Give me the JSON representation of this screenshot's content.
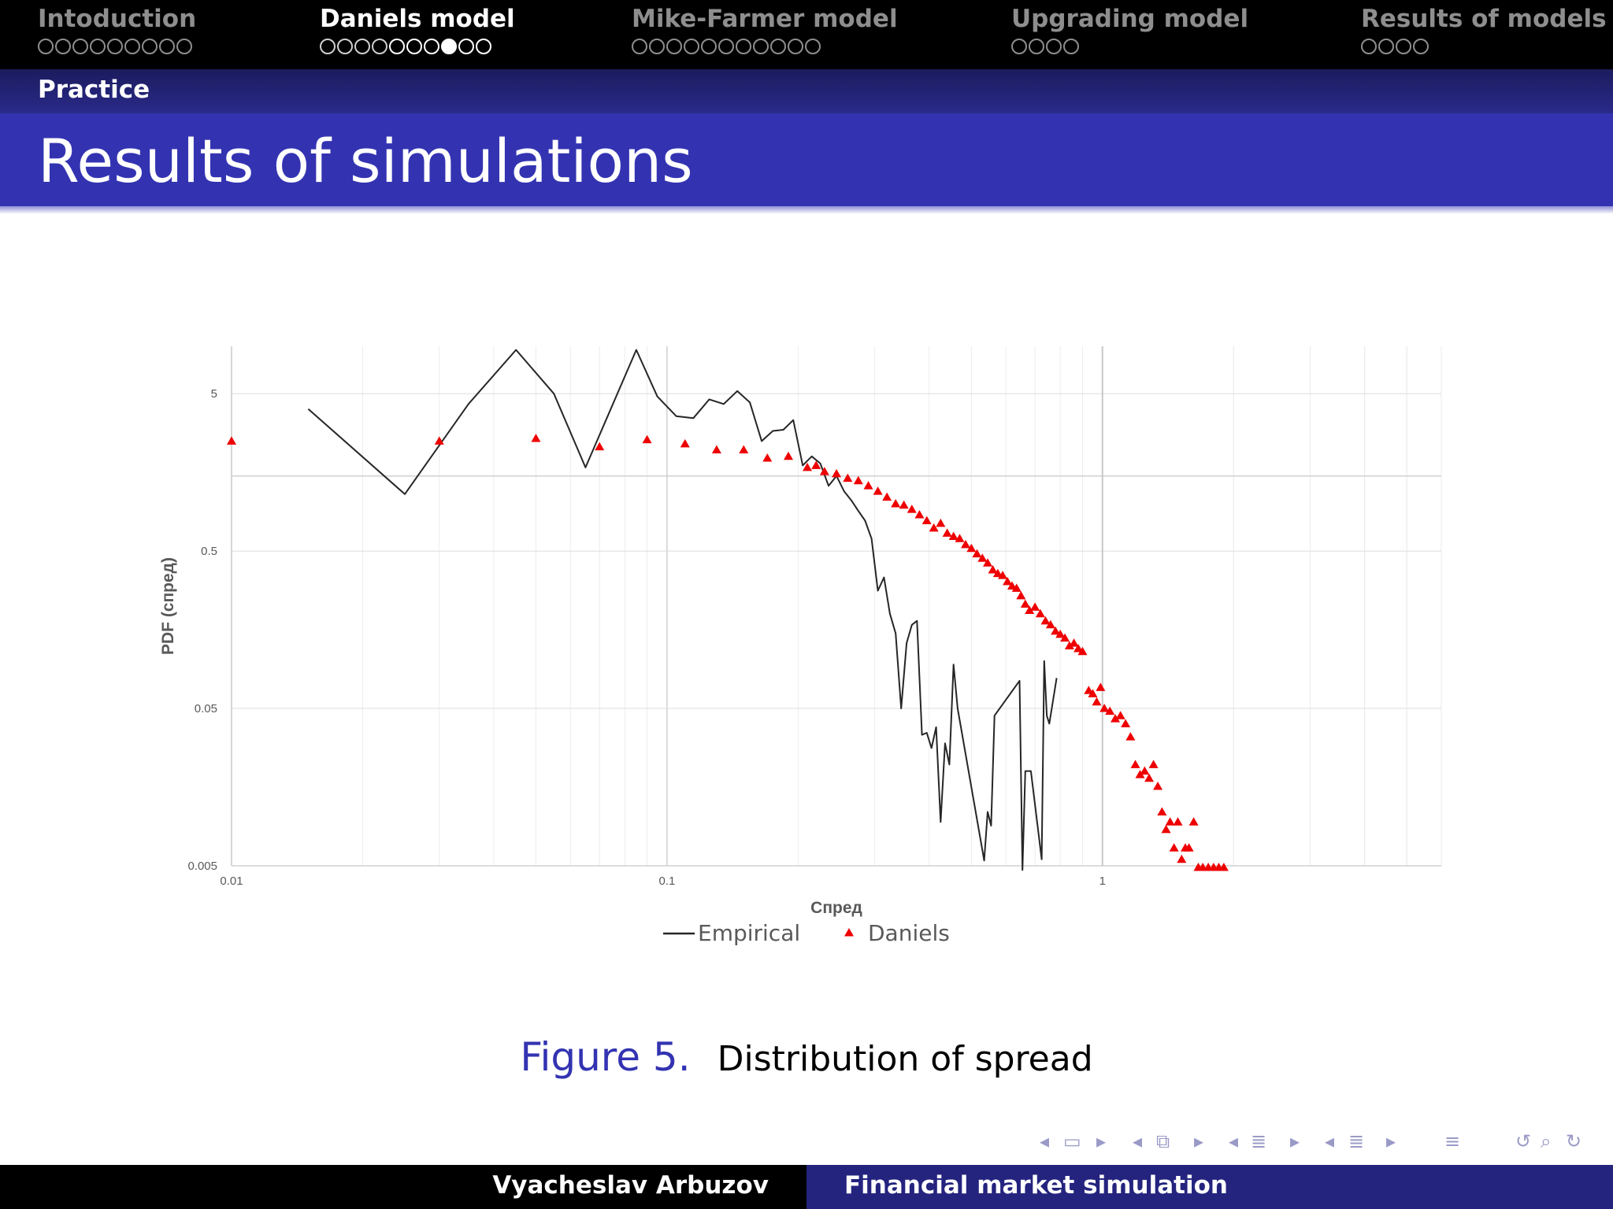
{
  "nav": {
    "sections": [
      {
        "title": "Intoduction",
        "dots": 9,
        "filled": [],
        "current": []
      },
      {
        "title": "Daniels model",
        "dots": 10,
        "filled": [
          7
        ],
        "current": [
          4,
          5,
          6,
          7,
          8,
          9
        ]
      },
      {
        "title": "Mike-Farmer model",
        "dots": 11,
        "filled": [],
        "current": []
      },
      {
        "title": "Upgrading model",
        "dots": 4,
        "filled": [],
        "current": []
      },
      {
        "title": "Results of models",
        "dots": 4,
        "filled": [],
        "current": []
      }
    ],
    "active_index": 1
  },
  "subsection": "Practice",
  "frame_title": "Results of simulations",
  "chart_data": {
    "type": "line+scatter",
    "xscale": "log",
    "yscale": "log",
    "xlim": [
      0.01,
      6
    ],
    "ylim": [
      0.005,
      10
    ],
    "xticks": [
      {
        "value": 0.01,
        "label": "0.01"
      },
      {
        "value": 0.1,
        "label": "0.1"
      },
      {
        "value": 1,
        "label": "1"
      }
    ],
    "yticks": [
      {
        "value": 0.005,
        "label": "0.005"
      },
      {
        "value": 0.05,
        "label": "0.05"
      },
      {
        "value": 0.5,
        "label": "0.5"
      },
      {
        "value": 5,
        "label": "5"
      }
    ],
    "xlabel": "Спред",
    "ylabel": "PDF (спред)",
    "legend_position": "bottom",
    "grid": true,
    "series": [
      {
        "name": "Empirical",
        "kind": "line",
        "color": "#262626",
        "points": [
          [
            0.015,
            4.0
          ],
          [
            0.025,
            1.15
          ],
          [
            0.035,
            4.3
          ],
          [
            0.045,
            9.5
          ],
          [
            0.055,
            5.0
          ],
          [
            0.065,
            1.7
          ],
          [
            0.085,
            9.5
          ],
          [
            0.095,
            4.8
          ],
          [
            0.105,
            3.6
          ],
          [
            0.115,
            3.5
          ],
          [
            0.125,
            4.6
          ],
          [
            0.135,
            4.3
          ],
          [
            0.145,
            5.2
          ],
          [
            0.155,
            4.4
          ],
          [
            0.165,
            2.5
          ],
          [
            0.175,
            2.9
          ],
          [
            0.185,
            2.95
          ],
          [
            0.195,
            3.4
          ],
          [
            0.205,
            1.75
          ],
          [
            0.215,
            2.0
          ],
          [
            0.225,
            1.8
          ],
          [
            0.235,
            1.3
          ],
          [
            0.245,
            1.5
          ],
          [
            0.255,
            1.2
          ],
          [
            0.265,
            1.05
          ],
          [
            0.275,
            0.9
          ],
          [
            0.285,
            0.78
          ],
          [
            0.295,
            0.6
          ],
          [
            0.305,
            0.28
          ],
          [
            0.315,
            0.34
          ],
          [
            0.325,
            0.2
          ],
          [
            0.335,
            0.15
          ],
          [
            0.345,
            0.05
          ],
          [
            0.355,
            0.13
          ],
          [
            0.365,
            0.17
          ],
          [
            0.375,
            0.18
          ],
          [
            0.385,
            0.034
          ],
          [
            0.395,
            0.035
          ],
          [
            0.405,
            0.028
          ],
          [
            0.415,
            0.038
          ],
          [
            0.425,
            0.0095
          ],
          [
            0.435,
            0.03
          ],
          [
            0.445,
            0.022
          ],
          [
            0.455,
            0.095
          ],
          [
            0.465,
            0.05
          ],
          [
            0.535,
            0.0054
          ],
          [
            0.545,
            0.011
          ],
          [
            0.555,
            0.009
          ],
          [
            0.565,
            0.045
          ],
          [
            0.645,
            0.075
          ],
          [
            0.655,
            0.0047
          ],
          [
            0.665,
            0.02
          ],
          [
            0.685,
            0.02
          ],
          [
            0.725,
            0.0055
          ],
          [
            0.735,
            0.1
          ],
          [
            0.745,
            0.045
          ],
          [
            0.755,
            0.04
          ],
          [
            0.785,
            0.078
          ]
        ]
      },
      {
        "name": "Daniels",
        "kind": "scatter",
        "marker": "triangle",
        "color": "#ee0000",
        "points": [
          [
            0.01,
            2.5
          ],
          [
            0.03,
            2.5
          ],
          [
            0.05,
            2.6
          ],
          [
            0.07,
            2.3
          ],
          [
            0.09,
            2.55
          ],
          [
            0.11,
            2.4
          ],
          [
            0.13,
            2.2
          ],
          [
            0.15,
            2.2
          ],
          [
            0.17,
            1.95
          ],
          [
            0.19,
            2.0
          ],
          [
            0.21,
            1.7
          ],
          [
            0.22,
            1.75
          ],
          [
            0.23,
            1.6
          ],
          [
            0.245,
            1.55
          ],
          [
            0.26,
            1.45
          ],
          [
            0.275,
            1.4
          ],
          [
            0.29,
            1.3
          ],
          [
            0.305,
            1.2
          ],
          [
            0.32,
            1.1
          ],
          [
            0.335,
            1.0
          ],
          [
            0.35,
            0.98
          ],
          [
            0.365,
            0.92
          ],
          [
            0.38,
            0.85
          ],
          [
            0.395,
            0.78
          ],
          [
            0.41,
            0.7
          ],
          [
            0.425,
            0.75
          ],
          [
            0.44,
            0.65
          ],
          [
            0.455,
            0.62
          ],
          [
            0.47,
            0.6
          ],
          [
            0.485,
            0.55
          ],
          [
            0.5,
            0.52
          ],
          [
            0.515,
            0.48
          ],
          [
            0.53,
            0.45
          ],
          [
            0.545,
            0.42
          ],
          [
            0.56,
            0.38
          ],
          [
            0.575,
            0.36
          ],
          [
            0.59,
            0.35
          ],
          [
            0.605,
            0.32
          ],
          [
            0.62,
            0.3
          ],
          [
            0.635,
            0.29
          ],
          [
            0.65,
            0.26
          ],
          [
            0.665,
            0.23
          ],
          [
            0.68,
            0.21
          ],
          [
            0.7,
            0.22
          ],
          [
            0.72,
            0.2
          ],
          [
            0.74,
            0.18
          ],
          [
            0.76,
            0.17
          ],
          [
            0.78,
            0.155
          ],
          [
            0.8,
            0.148
          ],
          [
            0.82,
            0.14
          ],
          [
            0.84,
            0.125
          ],
          [
            0.86,
            0.13
          ],
          [
            0.88,
            0.12
          ],
          [
            0.9,
            0.115
          ],
          [
            0.93,
            0.065
          ],
          [
            0.95,
            0.062
          ],
          [
            0.97,
            0.055
          ],
          [
            0.99,
            0.068
          ],
          [
            1.01,
            0.05
          ],
          [
            1.04,
            0.048
          ],
          [
            1.07,
            0.043
          ],
          [
            1.1,
            0.045
          ],
          [
            1.13,
            0.04
          ],
          [
            1.16,
            0.033
          ],
          [
            1.19,
            0.022
          ],
          [
            1.22,
            0.019
          ],
          [
            1.25,
            0.02
          ],
          [
            1.28,
            0.018
          ],
          [
            1.31,
            0.022
          ],
          [
            1.34,
            0.016
          ],
          [
            1.37,
            0.011
          ],
          [
            1.4,
            0.0085
          ],
          [
            1.43,
            0.0095
          ],
          [
            1.46,
            0.0065
          ],
          [
            1.49,
            0.0095
          ],
          [
            1.52,
            0.0055
          ],
          [
            1.55,
            0.0065
          ],
          [
            1.58,
            0.0065
          ],
          [
            1.62,
            0.0095
          ],
          [
            1.66,
            0.0048
          ],
          [
            1.7,
            0.0048
          ],
          [
            1.75,
            0.0048
          ],
          [
            1.8,
            0.0048
          ],
          [
            1.85,
            0.0048
          ],
          [
            1.9,
            0.0048
          ]
        ]
      }
    ]
  },
  "caption": {
    "label": "Figure 5.",
    "text": "Distribution of spread"
  },
  "footer": {
    "author": "Vyacheslav Arbuzov",
    "title": "Financial market simulation"
  },
  "icons": [
    "nav-left-icon",
    "frame-icon",
    "nav-right-icon",
    "subsection-icon",
    "section-icon",
    "list-icon",
    "search-icon",
    "undo-icon"
  ]
}
